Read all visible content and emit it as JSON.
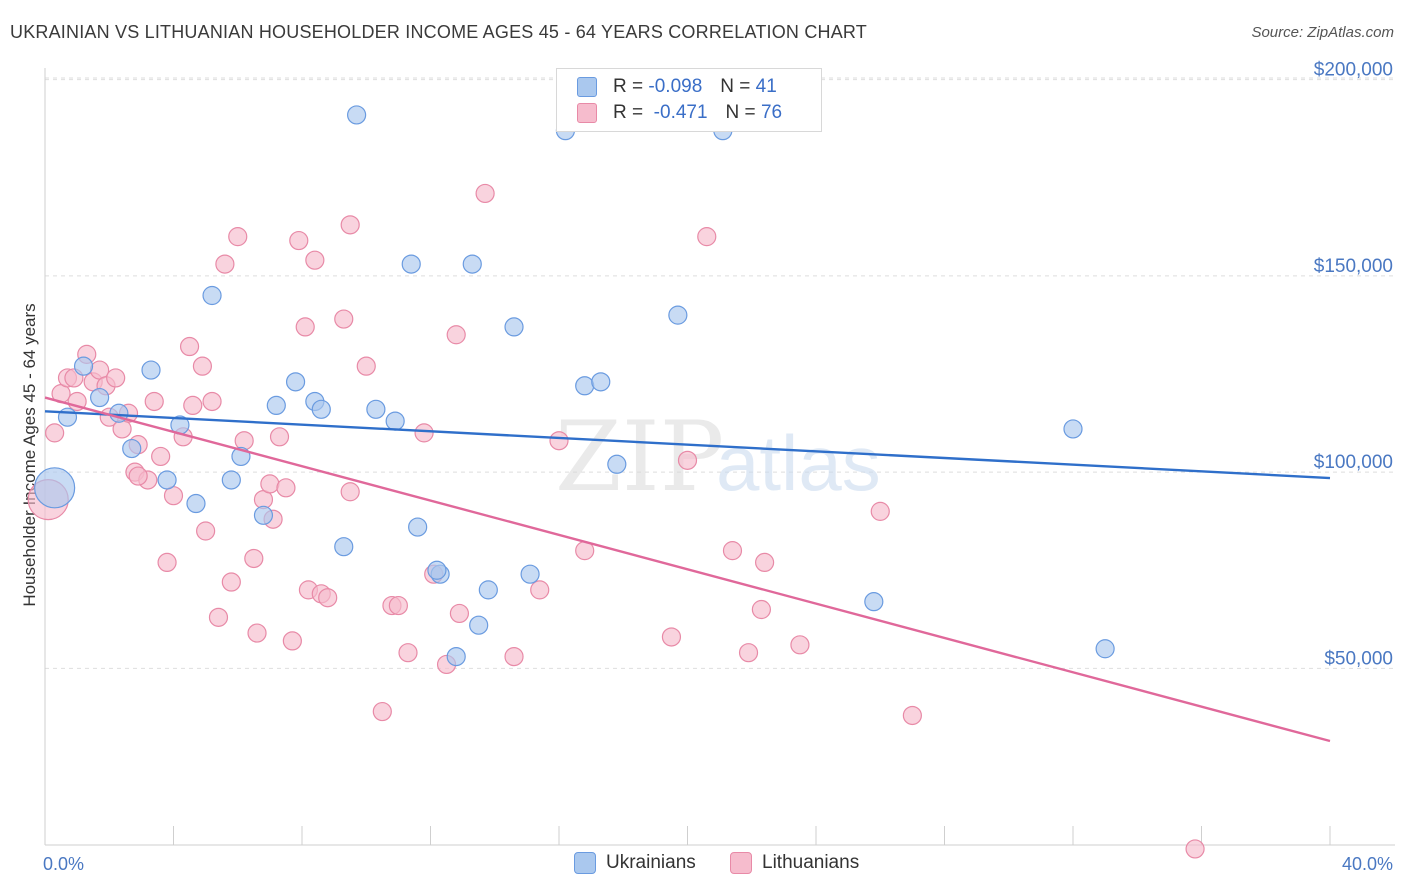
{
  "header": {
    "title": "UKRAINIAN VS LITHUANIAN HOUSEHOLDER INCOME AGES 45 - 64 YEARS CORRELATION CHART",
    "source": "Source: ZipAtlas.com"
  },
  "watermark": {
    "zip": "ZIP",
    "atlas": "atlas"
  },
  "legend": {
    "ukr": {
      "r_label": "R =",
      "r_value": "-0.098",
      "n_label": "N =",
      "n_value": "41"
    },
    "lit": {
      "r_label": "R =",
      "r_value": "-0.471",
      "n_label": "N =",
      "n_value": "76"
    }
  },
  "bottom_legend": {
    "ukr": "Ukrainians",
    "lit": "Lithuanians"
  },
  "colors": {
    "ukr_fill": "#aac8ee",
    "ukr_stroke": "#6a9be0",
    "ukr_line": "#2f6fca",
    "lit_fill": "#f6bccd",
    "lit_stroke": "#e88aa7",
    "lit_line": "#e0689a",
    "grid": "#dedede",
    "axis_text": "#4a78c2"
  },
  "chart_data": {
    "type": "scatter",
    "title": "UKRAINIAN VS LITHUANIAN HOUSEHOLDER INCOME AGES 45 - 64 YEARS CORRELATION CHART",
    "xlabel": "",
    "ylabel": "Householder Income Ages 45 - 64 years",
    "xlim": [
      0,
      40
    ],
    "ylim": [
      5000,
      205000
    ],
    "x_tick_labels": [
      "0.0%",
      "40.0%"
    ],
    "y_ticks": [
      50000,
      100000,
      150000,
      200000
    ],
    "y_tick_labels": [
      "$50,000",
      "$100,000",
      "$150,000",
      "$200,000"
    ],
    "grid": true,
    "series": [
      {
        "name": "Ukrainians",
        "r": -0.098,
        "n": 41,
        "trend": {
          "x": [
            0,
            40
          ],
          "y": [
            115500,
            98500
          ]
        },
        "points": [
          {
            "x": 0.3,
            "y": 96000,
            "big": true
          },
          {
            "x": 0.7,
            "y": 114000
          },
          {
            "x": 1.2,
            "y": 127000
          },
          {
            "x": 1.7,
            "y": 119000
          },
          {
            "x": 2.3,
            "y": 115000
          },
          {
            "x": 2.7,
            "y": 106000
          },
          {
            "x": 3.3,
            "y": 126000
          },
          {
            "x": 3.8,
            "y": 98000
          },
          {
            "x": 4.2,
            "y": 112000
          },
          {
            "x": 4.7,
            "y": 92000
          },
          {
            "x": 5.2,
            "y": 145000
          },
          {
            "x": 5.8,
            "y": 98000
          },
          {
            "x": 6.1,
            "y": 104000
          },
          {
            "x": 6.8,
            "y": 89000
          },
          {
            "x": 7.2,
            "y": 117000
          },
          {
            "x": 7.8,
            "y": 123000
          },
          {
            "x": 8.4,
            "y": 118000
          },
          {
            "x": 8.6,
            "y": 116000
          },
          {
            "x": 9.3,
            "y": 81000
          },
          {
            "x": 9.7,
            "y": 191000
          },
          {
            "x": 10.3,
            "y": 116000
          },
          {
            "x": 10.9,
            "y": 113000
          },
          {
            "x": 11.4,
            "y": 153000
          },
          {
            "x": 11.6,
            "y": 86000
          },
          {
            "x": 12.3,
            "y": 74000
          },
          {
            "x": 12.8,
            "y": 53000
          },
          {
            "x": 13.3,
            "y": 153000
          },
          {
            "x": 13.5,
            "y": 61000
          },
          {
            "x": 13.8,
            "y": 70000
          },
          {
            "x": 14.6,
            "y": 137000
          },
          {
            "x": 15.1,
            "y": 74000
          },
          {
            "x": 16.2,
            "y": 187000
          },
          {
            "x": 16.8,
            "y": 122000
          },
          {
            "x": 17.8,
            "y": 102000
          },
          {
            "x": 17.3,
            "y": 123000
          },
          {
            "x": 19.7,
            "y": 140000
          },
          {
            "x": 21.1,
            "y": 187000
          },
          {
            "x": 25.8,
            "y": 67000
          },
          {
            "x": 32.0,
            "y": 111000
          },
          {
            "x": 33.0,
            "y": 55000
          },
          {
            "x": 12.2,
            "y": 75000
          }
        ]
      },
      {
        "name": "Lithuanians",
        "r": -0.471,
        "n": 76,
        "trend": {
          "x": [
            0,
            40
          ],
          "y": [
            119000,
            31500
          ]
        },
        "points": [
          {
            "x": 0.1,
            "y": 93000,
            "big": true
          },
          {
            "x": 0.3,
            "y": 110000
          },
          {
            "x": 0.5,
            "y": 120000
          },
          {
            "x": 0.7,
            "y": 124000
          },
          {
            "x": 0.9,
            "y": 124000
          },
          {
            "x": 1.0,
            "y": 118000
          },
          {
            "x": 1.3,
            "y": 130000
          },
          {
            "x": 1.5,
            "y": 123000
          },
          {
            "x": 1.7,
            "y": 126000
          },
          {
            "x": 1.9,
            "y": 122000
          },
          {
            "x": 2.0,
            "y": 114000
          },
          {
            "x": 2.2,
            "y": 124000
          },
          {
            "x": 2.4,
            "y": 111000
          },
          {
            "x": 2.6,
            "y": 115000
          },
          {
            "x": 2.8,
            "y": 100000
          },
          {
            "x": 2.9,
            "y": 107000
          },
          {
            "x": 3.2,
            "y": 98000
          },
          {
            "x": 3.4,
            "y": 118000
          },
          {
            "x": 3.6,
            "y": 104000
          },
          {
            "x": 3.8,
            "y": 77000
          },
          {
            "x": 4.0,
            "y": 94000
          },
          {
            "x": 4.3,
            "y": 109000
          },
          {
            "x": 4.5,
            "y": 132000
          },
          {
            "x": 4.6,
            "y": 117000
          },
          {
            "x": 4.9,
            "y": 127000
          },
          {
            "x": 5.0,
            "y": 85000
          },
          {
            "x": 5.2,
            "y": 118000
          },
          {
            "x": 5.4,
            "y": 63000
          },
          {
            "x": 5.6,
            "y": 153000
          },
          {
            "x": 5.8,
            "y": 72000
          },
          {
            "x": 6.0,
            "y": 160000
          },
          {
            "x": 6.2,
            "y": 108000
          },
          {
            "x": 6.5,
            "y": 78000
          },
          {
            "x": 6.6,
            "y": 59000
          },
          {
            "x": 6.8,
            "y": 93000
          },
          {
            "x": 7.0,
            "y": 97000
          },
          {
            "x": 7.1,
            "y": 88000
          },
          {
            "x": 7.3,
            "y": 109000
          },
          {
            "x": 7.5,
            "y": 96000
          },
          {
            "x": 7.7,
            "y": 57000
          },
          {
            "x": 7.9,
            "y": 159000
          },
          {
            "x": 8.1,
            "y": 137000
          },
          {
            "x": 8.2,
            "y": 70000
          },
          {
            "x": 8.4,
            "y": 154000
          },
          {
            "x": 8.6,
            "y": 69000
          },
          {
            "x": 8.8,
            "y": 68000
          },
          {
            "x": 9.3,
            "y": 139000
          },
          {
            "x": 9.5,
            "y": 95000
          },
          {
            "x": 9.5,
            "y": 163000
          },
          {
            "x": 10.0,
            "y": 127000
          },
          {
            "x": 10.8,
            "y": 66000
          },
          {
            "x": 10.5,
            "y": 39000
          },
          {
            "x": 11.0,
            "y": 66000
          },
          {
            "x": 11.3,
            "y": 54000
          },
          {
            "x": 11.8,
            "y": 110000
          },
          {
            "x": 12.1,
            "y": 74000
          },
          {
            "x": 12.5,
            "y": 51000
          },
          {
            "x": 12.8,
            "y": 135000
          },
          {
            "x": 12.9,
            "y": 64000
          },
          {
            "x": 13.7,
            "y": 171000
          },
          {
            "x": 14.6,
            "y": 53000
          },
          {
            "x": 15.4,
            "y": 70000
          },
          {
            "x": 16.0,
            "y": 108000
          },
          {
            "x": 16.8,
            "y": 80000
          },
          {
            "x": 19.5,
            "y": 58000
          },
          {
            "x": 20.0,
            "y": 103000
          },
          {
            "x": 20.6,
            "y": 160000
          },
          {
            "x": 21.4,
            "y": 80000
          },
          {
            "x": 21.9,
            "y": 54000
          },
          {
            "x": 22.3,
            "y": 65000
          },
          {
            "x": 22.4,
            "y": 77000
          },
          {
            "x": 23.5,
            "y": 56000
          },
          {
            "x": 26.0,
            "y": 90000
          },
          {
            "x": 27.0,
            "y": 38000
          },
          {
            "x": 35.8,
            "y": 4000
          },
          {
            "x": 2.9,
            "y": 99000
          }
        ]
      }
    ]
  }
}
